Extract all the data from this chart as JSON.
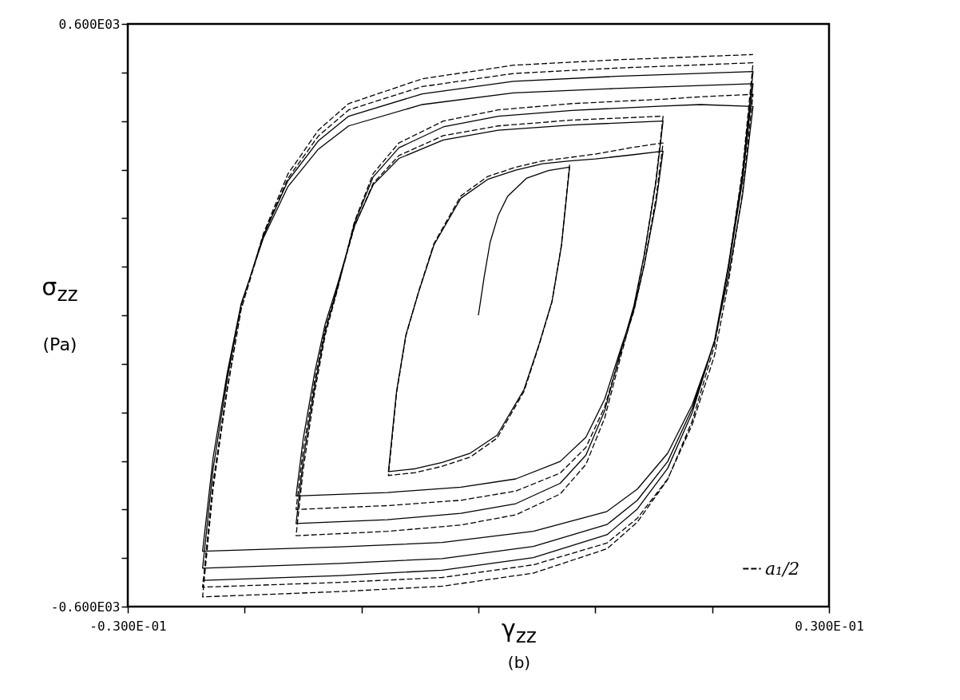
{
  "chart_data": {
    "type": "line",
    "xlabel": "γ$_{zz}$",
    "ylabel": "σ$_{zz}$ (Pa)",
    "annotations": [
      "(b)"
    ],
    "xlim": [
      -0.03,
      0.03
    ],
    "ylim": [
      -600,
      600
    ],
    "xticks": [
      {
        "value": -0.03,
        "label": "-0.300E-01"
      },
      {
        "value": -0.02,
        "label": null
      },
      {
        "value": -0.01,
        "label": null
      },
      {
        "value": 0,
        "label": null
      },
      {
        "value": 0.01,
        "label": null
      },
      {
        "value": 0.02,
        "label": null
      },
      {
        "value": 0.03,
        "label": "0.300E-01"
      }
    ],
    "yticks": [
      {
        "value": -600,
        "label": "-0.600E03"
      },
      {
        "value": -500,
        "label": null
      },
      {
        "value": -400,
        "label": null
      },
      {
        "value": -300,
        "label": null
      },
      {
        "value": -200,
        "label": null
      },
      {
        "value": -100,
        "label": null
      },
      {
        "value": 0,
        "label": null
      },
      {
        "value": 100,
        "label": null
      },
      {
        "value": 200,
        "label": null
      },
      {
        "value": 300,
        "label": null
      },
      {
        "value": 400,
        "label": null
      },
      {
        "value": 500,
        "label": null
      },
      {
        "value": 600,
        "label": "0.600E03"
      }
    ],
    "grid": false,
    "legend": "bottom right",
    "marker": "none",
    "series": [
      {
        "color": "#000000",
        "line_style": "solid",
        "x": [
          0,
          0.0005,
          0.001,
          0.0017,
          0.0025,
          0.0041,
          0.006,
          0.0078,
          0.0071,
          0.0063,
          0.0052,
          0.0039,
          0.0016,
          -0.0007,
          -0.0031,
          -0.0054,
          -0.0077,
          -0.007,
          -0.0062,
          -0.0051,
          -0.0038,
          -0.0015,
          0.0008,
          0.0032,
          0.0055,
          0.0078,
          0.01,
          0.013,
          0.0158,
          0.0152,
          0.0142,
          0.0133,
          0.0123,
          0.0108,
          0.0092,
          0.007,
          0.0032,
          -0.0015,
          -0.0078,
          -0.0156,
          -0.015,
          -0.014,
          -0.0131,
          -0.0121,
          -0.0106,
          -0.009,
          -0.0068,
          -0.003,
          0.0017,
          0.008,
          0.0158,
          0.0152,
          0.0142,
          0.0133,
          0.0123,
          0.0108,
          0.0092,
          0.007,
          0.0032,
          -0.0015,
          -0.0078,
          -0.0156,
          -0.015,
          -0.014,
          -0.0131,
          -0.0121,
          -0.0106,
          -0.009,
          -0.0068,
          -0.003,
          0.0017,
          0.008,
          0.0158,
          0.019,
          0.0235,
          0.0226,
          0.0214,
          0.0202,
          0.0183,
          0.0162,
          0.0136,
          0.011,
          0.0047,
          -0.0031,
          -0.0118,
          -0.0236,
          -0.0227,
          -0.0215,
          -0.0203,
          -0.0184,
          -0.0163,
          -0.0137,
          -0.0111,
          -0.0048,
          0.003,
          0.0117,
          0.0235,
          0.0226,
          0.0214,
          0.0202,
          0.0183,
          0.0162,
          0.0136,
          0.011,
          0.0047,
          -0.0031,
          -0.0118,
          -0.0236,
          -0.0227,
          -0.0215,
          -0.0203,
          -0.0184,
          -0.0163,
          -0.0137,
          -0.0111,
          -0.0048,
          0.003,
          0.0117,
          0.0235,
          0.0226,
          0.0214,
          0.0202,
          0.0183,
          0.0162,
          0.0136,
          0.011,
          0.0047,
          -0.0031,
          -0.0118,
          -0.0236
        ],
        "values": [
          0,
          80,
          150,
          206,
          245,
          282,
          298,
          305,
          142,
          29,
          -59,
          -153,
          -247,
          -284,
          -303,
          -316,
          -322,
          -156,
          -40,
          49,
          145,
          241,
          280,
          299,
          312,
          318,
          322,
          330,
          338,
          232,
          104,
          11,
          -60,
          -173,
          -251,
          -301,
          -337,
          -354,
          -365,
          -372,
          -256,
          -117,
          -17,
          60,
          184,
          269,
          323,
          361,
          381,
          392,
          400,
          276,
          126,
          19,
          -64,
          -197,
          -288,
          -346,
          -388,
          -408,
          -421,
          -429,
          -300,
          -145,
          -33,
          53,
          190,
          285,
          345,
          388,
          410,
          422,
          431,
          434,
          430,
          247,
          82,
          -55,
          -184,
          -284,
          -358,
          -404,
          -445,
          -468,
          -477,
          -486,
          -293,
          -120,
          24,
          159,
          265,
          342,
          390,
          434,
          458,
          467,
          477,
          277,
          98,
          -52,
          -192,
          -301,
          -381,
          -431,
          -476,
          -501,
          -511,
          -521,
          -316,
          -132,
          21,
          164,
          277,
          359,
          410,
          456,
          482,
          492,
          502,
          292,
          104,
          -53,
          -200,
          -315,
          -399,
          -452,
          -499,
          -525,
          -536,
          -546
        ]
      },
      {
        "name": "a₁/2",
        "color": "#000000",
        "line_style": "dashed",
        "x": [
          0.0078,
          0.0071,
          0.0063,
          0.0052,
          0.0039,
          0.0016,
          -0.0007,
          -0.0031,
          -0.0054,
          -0.0077,
          -0.007,
          -0.0062,
          -0.0051,
          -0.0038,
          -0.0015,
          0.0008,
          0.0032,
          0.0055,
          0.0078,
          0.01,
          0.013,
          0.0158,
          0.0152,
          0.0142,
          0.0133,
          0.0123,
          0.0108,
          0.0092,
          0.007,
          0.0032,
          -0.0015,
          -0.0078,
          -0.0156,
          -0.015,
          -0.014,
          -0.0131,
          -0.0121,
          -0.0106,
          -0.009,
          -0.0068,
          -0.003,
          0.0017,
          0.008,
          0.0158,
          0.0152,
          0.0142,
          0.0133,
          0.0123,
          0.0108,
          0.0092,
          0.007,
          0.0032,
          -0.0015,
          -0.0078,
          -0.0156,
          -0.015,
          -0.014,
          -0.0131,
          -0.0121,
          -0.0106,
          -0.009,
          -0.0068,
          -0.003,
          0.0017,
          0.008,
          0.0158,
          0.019,
          0.0235,
          0.0226,
          0.0214,
          0.0202,
          0.0183,
          0.0162,
          0.0136,
          0.011,
          0.0047,
          -0.0031,
          -0.0118,
          -0.0236,
          -0.0227,
          -0.0215,
          -0.0203,
          -0.0184,
          -0.0163,
          -0.0137,
          -0.0111,
          -0.0048,
          0.003,
          0.0117,
          0.0235,
          0.0226,
          0.0214,
          0.0202,
          0.0183,
          0.0162,
          0.0136,
          0.011,
          0.0047,
          -0.0031,
          -0.0118,
          -0.0236,
          -0.0227,
          -0.0215,
          -0.0203,
          -0.0184,
          -0.0163,
          -0.0137,
          -0.0111,
          -0.0048,
          0.003,
          0.0117,
          0.0235
        ],
        "values": [
          310,
          144,
          28,
          -61,
          -157,
          -253,
          -292,
          -311,
          -324,
          -330,
          -160,
          -42,
          50,
          148,
          246,
          286,
          305,
          318,
          325,
          332,
          345,
          355,
          242,
          106,
          8,
          -68,
          -189,
          -272,
          -325,
          -362,
          -381,
          -392,
          -400,
          -279,
          -133,
          -27,
          54,
          183,
          272,
          329,
          370,
          390,
          402,
          410,
          280,
          125,
          13,
          -74,
          -212,
          -307,
          -368,
          -411,
          -432,
          -445,
          -454,
          -319,
          -157,
          -40,
          49,
          193,
          292,
          355,
          400,
          423,
          436,
          445,
          450,
          455,
          252,
          69,
          -83,
          -225,
          -337,
          -418,
          -469,
          -514,
          -540,
          -550,
          -560,
          -344,
          -150,
          12,
          164,
          282,
          369,
          423,
          471,
          498,
          509,
          520,
          300,
          102,
          -63,
          -217,
          -338,
          -426,
          -481,
          -531,
          -558,
          -569,
          -580,
          -357,
          -156,
          12,
          168,
          291,
          381,
          436,
          487,
          515,
          526,
          537
        ]
      }
    ]
  }
}
